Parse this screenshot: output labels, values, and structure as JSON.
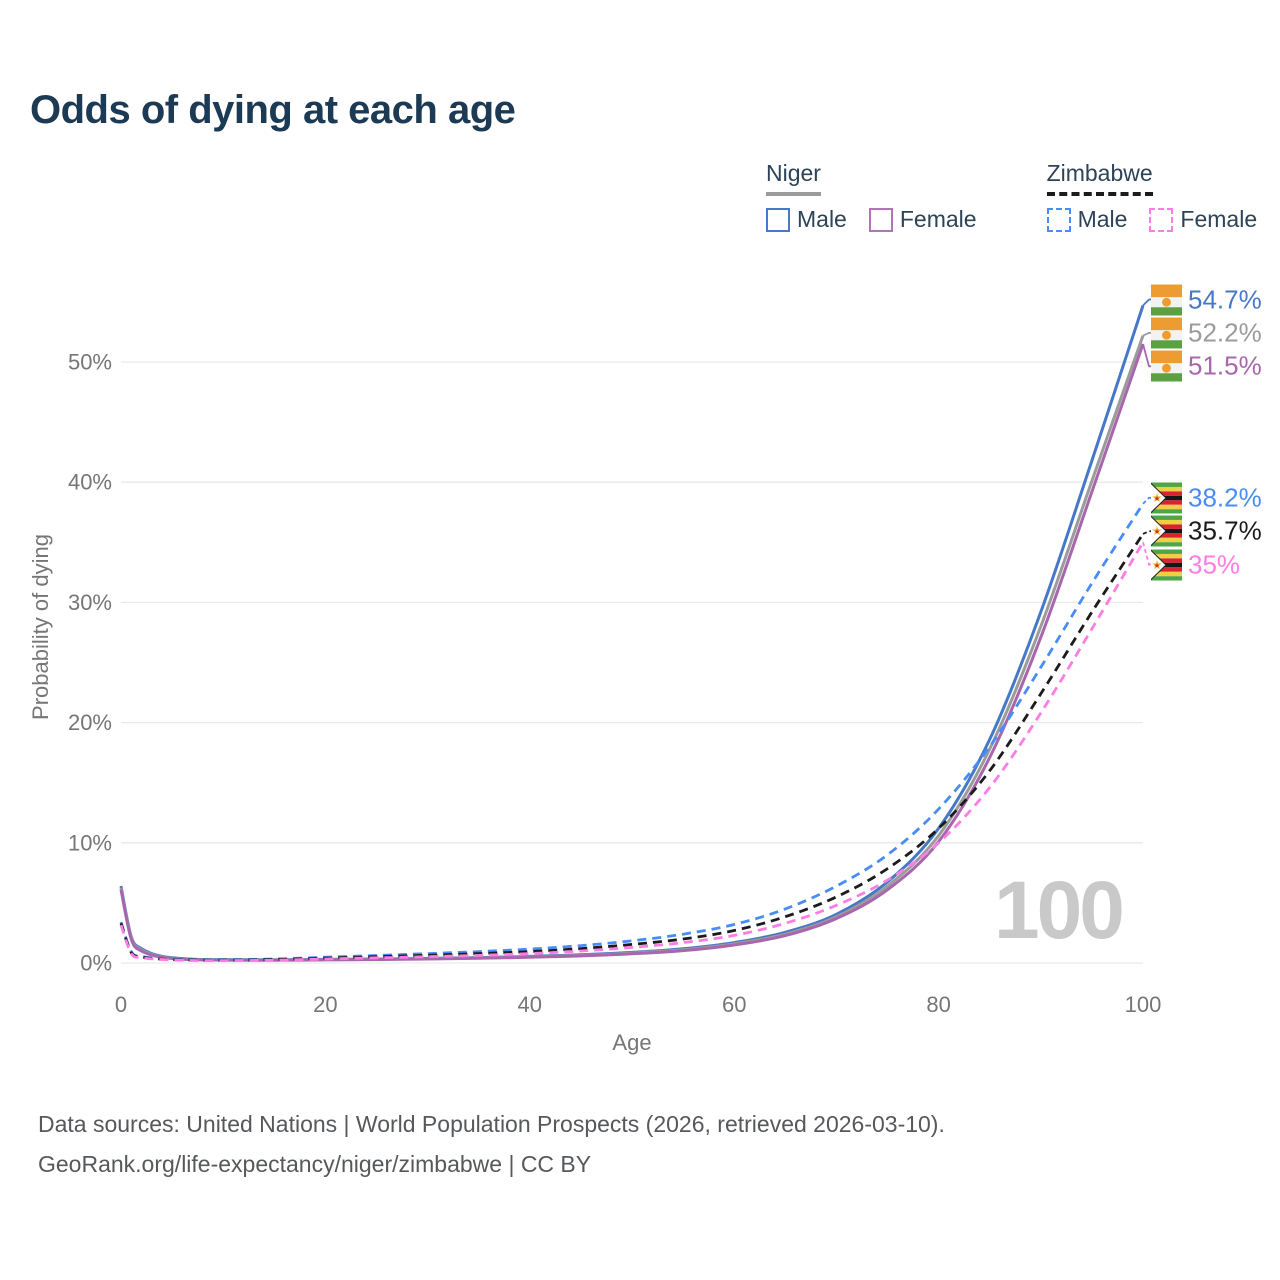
{
  "title": "Odds of dying at each age",
  "watermark": "100",
  "colors": {
    "title": "#1d3a55",
    "axis_text": "#767676",
    "gridline": "#e9e9e9",
    "watermark": "#c9c9c9",
    "footer_text": "#56585b",
    "niger_male": "#4678c8",
    "niger_both": "#9b9b9b",
    "niger_female": "#a867ad",
    "zimbabwe_male": "#4a8cf5",
    "zimbabwe_both": "#1b1b1b",
    "zimbabwe_female": "#fd7de5"
  },
  "legend": {
    "groups": [
      {
        "country": "Niger",
        "line_style": "solid",
        "underline_color": "#9b9b9b",
        "items": [
          {
            "label": "Male",
            "color": "#4678c8",
            "dashed": false
          },
          {
            "label": "Female",
            "color": "#b173b5",
            "dashed": false
          }
        ]
      },
      {
        "country": "Zimbabwe",
        "line_style": "dashed",
        "underline_color": "#1b1b1b",
        "items": [
          {
            "label": "Male",
            "color": "#4a8cf5",
            "dashed": true
          },
          {
            "label": "Female",
            "color": "#fd7de5",
            "dashed": true
          }
        ]
      }
    ]
  },
  "axes": {
    "y_title": "Probability of dying",
    "x_title": "Age",
    "y_ticks": [
      {
        "label": "0%",
        "value": 0
      },
      {
        "label": "10%",
        "value": 10
      },
      {
        "label": "20%",
        "value": 20
      },
      {
        "label": "30%",
        "value": 30
      },
      {
        "label": "40%",
        "value": 40
      },
      {
        "label": "50%",
        "value": 50
      }
    ],
    "x_ticks": [
      {
        "label": "0",
        "value": 0
      },
      {
        "label": "20",
        "value": 20
      },
      {
        "label": "40",
        "value": 40
      },
      {
        "label": "60",
        "value": 60
      },
      {
        "label": "80",
        "value": 80
      },
      {
        "label": "100",
        "value": 100
      }
    ]
  },
  "chart_data": {
    "type": "line",
    "title": "Odds of dying at each age",
    "xlabel": "Age",
    "ylabel": "Probability of dying",
    "xlim": [
      0,
      100
    ],
    "ylim_percent": [
      0,
      57
    ],
    "grid": "horizontal-only",
    "legend_position": "top-right",
    "series": [
      {
        "name": "Niger male",
        "country": "Niger",
        "sex": "male",
        "flag": "niger",
        "color": "#4678c8",
        "dashed": false,
        "end_label": "54.7%",
        "end_value": 54.7,
        "points": [
          [
            0,
            6.4
          ],
          [
            1,
            2.2
          ],
          [
            2,
            1.2
          ],
          [
            4,
            0.55
          ],
          [
            7,
            0.32
          ],
          [
            10,
            0.28
          ],
          [
            15,
            0.27
          ],
          [
            20,
            0.3
          ],
          [
            25,
            0.33
          ],
          [
            30,
            0.38
          ],
          [
            35,
            0.45
          ],
          [
            40,
            0.55
          ],
          [
            45,
            0.68
          ],
          [
            50,
            0.88
          ],
          [
            55,
            1.18
          ],
          [
            60,
            1.7
          ],
          [
            65,
            2.55
          ],
          [
            70,
            4.05
          ],
          [
            75,
            6.75
          ],
          [
            80,
            11.2
          ],
          [
            85,
            18.6
          ],
          [
            90,
            29.2
          ],
          [
            95,
            41.8
          ],
          [
            100,
            54.7
          ]
        ]
      },
      {
        "name": "Niger both sexes",
        "country": "Niger",
        "sex": "both",
        "flag": "niger",
        "color": "#9b9b9b",
        "dashed": false,
        "end_label": "52.2%",
        "end_value": 52.2,
        "points": [
          [
            0,
            6.25
          ],
          [
            1,
            2.1
          ],
          [
            2,
            1.1
          ],
          [
            4,
            0.5
          ],
          [
            7,
            0.3
          ],
          [
            10,
            0.26
          ],
          [
            15,
            0.25
          ],
          [
            20,
            0.28
          ],
          [
            25,
            0.31
          ],
          [
            30,
            0.35
          ],
          [
            35,
            0.42
          ],
          [
            40,
            0.51
          ],
          [
            45,
            0.63
          ],
          [
            50,
            0.82
          ],
          [
            55,
            1.1
          ],
          [
            60,
            1.6
          ],
          [
            65,
            2.4
          ],
          [
            70,
            3.85
          ],
          [
            75,
            6.4
          ],
          [
            80,
            10.6
          ],
          [
            85,
            17.8
          ],
          [
            90,
            28.0
          ],
          [
            95,
            40.1
          ],
          [
            100,
            52.2
          ]
        ]
      },
      {
        "name": "Niger female",
        "country": "Niger",
        "sex": "female",
        "flag": "niger",
        "color": "#a867ad",
        "dashed": false,
        "end_label": "51.5%",
        "end_value": 51.5,
        "points": [
          [
            0,
            6.1
          ],
          [
            1,
            2.0
          ],
          [
            2,
            1.0
          ],
          [
            4,
            0.47
          ],
          [
            7,
            0.28
          ],
          [
            10,
            0.24
          ],
          [
            15,
            0.23
          ],
          [
            20,
            0.26
          ],
          [
            25,
            0.29
          ],
          [
            30,
            0.33
          ],
          [
            35,
            0.39
          ],
          [
            40,
            0.48
          ],
          [
            45,
            0.59
          ],
          [
            50,
            0.77
          ],
          [
            55,
            1.03
          ],
          [
            60,
            1.5
          ],
          [
            65,
            2.28
          ],
          [
            70,
            3.7
          ],
          [
            75,
            6.1
          ],
          [
            80,
            10.1
          ],
          [
            85,
            17.1
          ],
          [
            90,
            27.1
          ],
          [
            95,
            39.2
          ],
          [
            100,
            51.5
          ]
        ]
      },
      {
        "name": "Zimbabwe male",
        "country": "Zimbabwe",
        "sex": "male",
        "flag": "zimbabwe",
        "color": "#4a8cf5",
        "dashed": true,
        "end_label": "38.2%",
        "end_value": 38.2,
        "points": [
          [
            0,
            3.4
          ],
          [
            1,
            0.95
          ],
          [
            2,
            0.55
          ],
          [
            4,
            0.35
          ],
          [
            7,
            0.28
          ],
          [
            10,
            0.27
          ],
          [
            15,
            0.33
          ],
          [
            20,
            0.48
          ],
          [
            25,
            0.62
          ],
          [
            30,
            0.78
          ],
          [
            35,
            0.95
          ],
          [
            40,
            1.16
          ],
          [
            45,
            1.45
          ],
          [
            50,
            1.85
          ],
          [
            55,
            2.4
          ],
          [
            60,
            3.2
          ],
          [
            65,
            4.5
          ],
          [
            70,
            6.4
          ],
          [
            75,
            9.0
          ],
          [
            80,
            12.8
          ],
          [
            85,
            18.0
          ],
          [
            90,
            24.6
          ],
          [
            95,
            31.6
          ],
          [
            100,
            38.2
          ]
        ]
      },
      {
        "name": "Zimbabwe both sexes",
        "country": "Zimbabwe",
        "sex": "both",
        "flag": "zimbabwe",
        "color": "#1b1b1b",
        "dashed": true,
        "end_label": "35.7%",
        "end_value": 35.7,
        "points": [
          [
            0,
            3.3
          ],
          [
            1,
            0.88
          ],
          [
            2,
            0.5
          ],
          [
            4,
            0.32
          ],
          [
            7,
            0.25
          ],
          [
            10,
            0.23
          ],
          [
            15,
            0.28
          ],
          [
            20,
            0.4
          ],
          [
            25,
            0.52
          ],
          [
            30,
            0.64
          ],
          [
            35,
            0.78
          ],
          [
            40,
            0.95
          ],
          [
            45,
            1.2
          ],
          [
            50,
            1.55
          ],
          [
            55,
            2.0
          ],
          [
            60,
            2.7
          ],
          [
            65,
            3.85
          ],
          [
            70,
            5.5
          ],
          [
            75,
            7.85
          ],
          [
            80,
            11.2
          ],
          [
            85,
            16.0
          ],
          [
            90,
            22.4
          ],
          [
            95,
            29.2
          ],
          [
            100,
            35.7
          ]
        ]
      },
      {
        "name": "Zimbabwe female",
        "country": "Zimbabwe",
        "sex": "female",
        "flag": "zimbabwe",
        "color": "#fd7de5",
        "dashed": true,
        "end_label": "35%",
        "end_value": 35.0,
        "points": [
          [
            0,
            3.15
          ],
          [
            1,
            0.8
          ],
          [
            2,
            0.45
          ],
          [
            4,
            0.29
          ],
          [
            7,
            0.21
          ],
          [
            10,
            0.2
          ],
          [
            15,
            0.23
          ],
          [
            20,
            0.33
          ],
          [
            25,
            0.43
          ],
          [
            30,
            0.52
          ],
          [
            35,
            0.63
          ],
          [
            40,
            0.78
          ],
          [
            45,
            1.0
          ],
          [
            50,
            1.3
          ],
          [
            55,
            1.7
          ],
          [
            60,
            2.3
          ],
          [
            65,
            3.3
          ],
          [
            70,
            4.8
          ],
          [
            75,
            6.9
          ],
          [
            80,
            10.0
          ],
          [
            85,
            14.6
          ],
          [
            90,
            20.8
          ],
          [
            95,
            27.8
          ],
          [
            100,
            35.0
          ]
        ]
      }
    ]
  },
  "footer": {
    "line1": "Data sources: United Nations | World Population Prospects (2026, retrieved 2026-03-10).",
    "line2": "GeoRank.org/life-expectancy/niger/zimbabwe | CC BY"
  }
}
